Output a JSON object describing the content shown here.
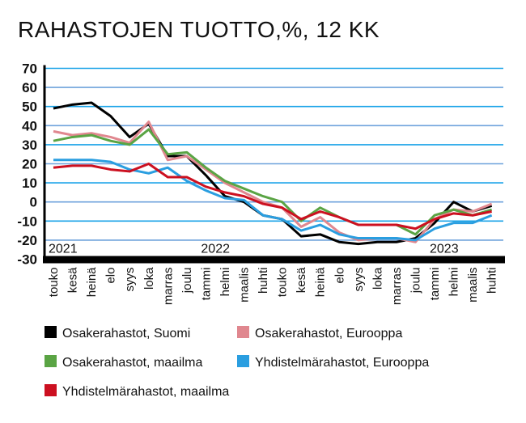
{
  "chart_data": {
    "type": "line",
    "title": "RAHASTOJEN TUOTTO,%, 12 KK",
    "categories": [
      "touko",
      "kesä",
      "heinä",
      "elo",
      "syys",
      "loka",
      "marras",
      "joulu",
      "tammi",
      "helmi",
      "maalis",
      "huhti",
      "touko",
      "kesä",
      "heinä",
      "elo",
      "syys",
      "loka",
      "marras",
      "joulu",
      "tammi",
      "helmi",
      "maalis",
      "huhti"
    ],
    "year_labels": [
      {
        "label": "2021",
        "index": 0
      },
      {
        "label": "2022",
        "index": 8
      },
      {
        "label": "2023",
        "index": 20
      }
    ],
    "ylim": [
      -30,
      70
    ],
    "yticks": [
      70,
      60,
      50,
      40,
      30,
      20,
      10,
      0,
      -10,
      -20,
      -30
    ],
    "grid": true,
    "legend_position": "bottom",
    "series": [
      {
        "name": "Osakerahastot, Suomi",
        "color": "#000000",
        "values": [
          49,
          51,
          52,
          45,
          34,
          41,
          24,
          24,
          14,
          3,
          0,
          -7,
          -9,
          -18,
          -17,
          -21,
          -22,
          -21,
          -21,
          -19,
          -11,
          0,
          -5,
          -2
        ]
      },
      {
        "name": "Osakerahastot, Eurooppa",
        "color": "#e0878f",
        "values": [
          37,
          35,
          36,
          34,
          31,
          42,
          22,
          24,
          17,
          10,
          5,
          0,
          -3,
          -13,
          -8,
          -16,
          -20,
          -19,
          -19,
          -21,
          -9,
          -4,
          -5,
          -1
        ]
      },
      {
        "name": "Osakerahastot, maailma",
        "color": "#5aa444",
        "values": [
          32,
          34,
          35,
          32,
          30,
          38,
          25,
          26,
          18,
          11,
          7,
          3,
          0,
          -10,
          -3,
          -8,
          -12,
          -12,
          -12,
          -17,
          -7,
          -4,
          -7,
          -4
        ]
      },
      {
        "name": "Yhdistelmärahastot, Eurooppa",
        "color": "#2a9ee0",
        "values": [
          22,
          22,
          22,
          21,
          17,
          15,
          18,
          11,
          6,
          2,
          1,
          -7,
          -9,
          -15,
          -12,
          -17,
          -19,
          -19,
          -19,
          -20,
          -14,
          -11,
          -11,
          -7
        ]
      },
      {
        "name": "Yhdistelmärahastot, maailma",
        "color": "#cc1020",
        "values": [
          18,
          19,
          19,
          17,
          16,
          20,
          13,
          13,
          8,
          5,
          3,
          -1,
          -3,
          -9,
          -5,
          -8,
          -12,
          -12,
          -12,
          -14,
          -9,
          -6,
          -7,
          -5
        ]
      }
    ]
  }
}
